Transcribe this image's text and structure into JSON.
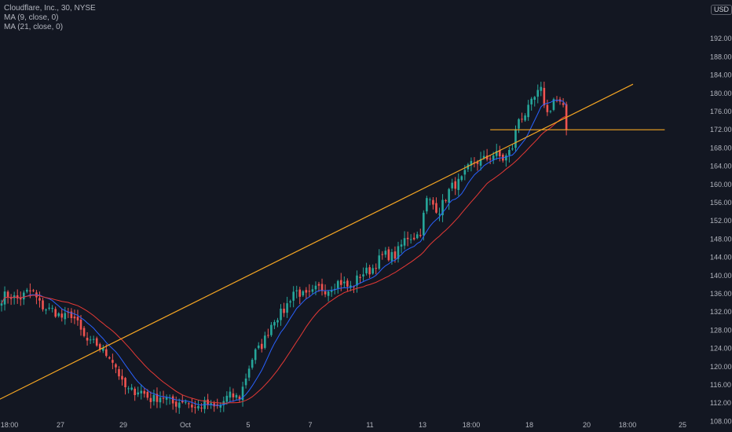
{
  "header": {
    "symbol_line": "Cloudflare, Inc., 30, NYSE",
    "ma9": "MA (9, close, 0)",
    "ma21": "MA (21, close, 0)",
    "currency": "USD"
  },
  "colors": {
    "background": "#131722",
    "grid": "#1e2230",
    "up": "#26a69a",
    "down": "#ef5350",
    "ma9": "#2962ff",
    "ma21": "#e53935",
    "trendline": "#f5a623",
    "axis_text": "#b2b5be"
  },
  "chart_data": {
    "type": "candlestick",
    "title": "Cloudflare, Inc., 30, NYSE",
    "ylim": [
      106,
      196
    ],
    "y_ticks": [
      108,
      112,
      116,
      120,
      124,
      128,
      132,
      136,
      140,
      144,
      148,
      152,
      156,
      160,
      164,
      168,
      172,
      176,
      180,
      184,
      188,
      192
    ],
    "y_tick_labels": [
      "108.00",
      "112.00",
      "116.00",
      "120.00",
      "124.00",
      "128.00",
      "132.00",
      "136.00",
      "140.00",
      "144.00",
      "148.00",
      "152.00",
      "156.00",
      "160.00",
      "164.00",
      "168.00",
      "172.00",
      "176.00",
      "180.00",
      "184.00",
      "188.00",
      "192.00"
    ],
    "x_labels": [
      "18:00",
      "27",
      "29",
      "Oct",
      "5",
      "7",
      "11",
      "13",
      "18:00",
      "18",
      "20",
      "18:00",
      "25"
    ],
    "grid": false,
    "close_waypoints": [
      [
        0,
        135.0
      ],
      [
        10,
        136.0
      ],
      [
        15,
        132.0
      ],
      [
        22,
        131.0
      ],
      [
        28,
        125.0
      ],
      [
        34,
        123.0
      ],
      [
        38,
        116.0
      ],
      [
        44,
        114.0
      ],
      [
        50,
        113.0
      ],
      [
        58,
        112.0
      ],
      [
        66,
        111.0
      ],
      [
        75,
        114.0
      ],
      [
        80,
        123.0
      ],
      [
        86,
        130.0
      ],
      [
        92,
        136.0
      ],
      [
        98,
        136.0
      ],
      [
        104,
        138.0
      ],
      [
        110,
        138.0
      ],
      [
        114,
        140.0
      ],
      [
        118,
        143.0
      ],
      [
        124,
        145.0
      ],
      [
        128,
        148.0
      ],
      [
        132,
        150.0
      ],
      [
        134,
        156.0
      ],
      [
        138,
        155.0
      ],
      [
        143,
        160.0
      ],
      [
        148,
        164.0
      ],
      [
        152,
        166.0
      ],
      [
        158,
        166.0
      ],
      [
        161,
        168.0
      ],
      [
        163,
        174.0
      ],
      [
        167,
        178.0
      ],
      [
        170,
        180.0
      ],
      [
        172,
        176.0
      ],
      [
        174,
        179.0
      ],
      [
        177,
        176.0
      ],
      [
        178,
        172.0
      ]
    ],
    "candle_count": 179,
    "series": [
      {
        "name": "MA (9, close, 0)",
        "period": 9
      },
      {
        "name": "MA (21, close, 0)",
        "period": 21
      }
    ],
    "annotations": [
      {
        "type": "trendline",
        "from": [
          -16,
          107.5
        ],
        "to": [
          199,
          182.0
        ]
      },
      {
        "type": "horizontal",
        "price": 172.0,
        "from_index": 154,
        "to_index": 209
      }
    ]
  }
}
